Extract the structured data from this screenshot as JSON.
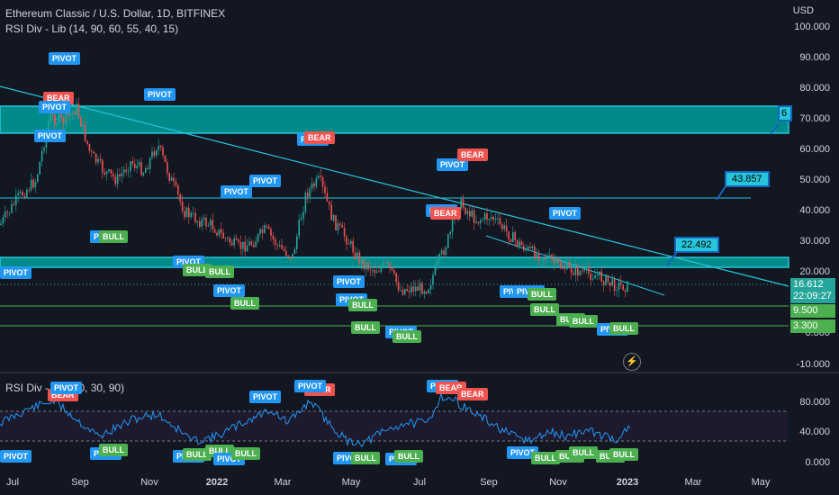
{
  "header": {
    "title": "Ethereum Classic / U.S. Dollar, 1D, BITFINEX",
    "indicator": "RSI Div - Lib (14, 90, 60, 55, 40, 15)",
    "rsi_indicator": "RSI Div - Lib (70, 30, 90)"
  },
  "price_axis": {
    "currency": "USD",
    "labels": [
      "100.000",
      "90.000",
      "80.000",
      "70.000",
      "60.000",
      "50.000",
      "40.000",
      "30.000",
      "20.000",
      "0.000",
      "-10.000"
    ]
  },
  "rsi_axis": {
    "labels": [
      "80.000",
      "40.000",
      "0.000"
    ]
  },
  "time_axis": {
    "labels": [
      "Jul",
      "Sep",
      "Nov",
      "2022",
      "Mar",
      "May",
      "Jul",
      "Sep",
      "Nov",
      "2023",
      "Mar",
      "May"
    ]
  },
  "price_tags": [
    {
      "value": "16.612",
      "sub": "22:09:27",
      "color": "#26a69a"
    },
    {
      "value": "9.500",
      "color": "#4caf50"
    },
    {
      "value": "3.300",
      "color": "#4caf50"
    }
  ],
  "callouts": [
    "43.857",
    "22.492",
    "6"
  ],
  "markers": {
    "pivot": "PIVOT",
    "bear": "BEAR",
    "bull": "BULL",
    "p": "P",
    "bu": "BU",
    "b": "B"
  },
  "colors": {
    "background": "#131722",
    "zone": "#008b8b",
    "line": "#26c6da",
    "candle_up": "#26a69a",
    "candle_down": "#ef5350",
    "rsi": "#2196f3",
    "pivot": "#2196f3",
    "bear": "#ef5350",
    "bull": "#4caf50"
  },
  "icons": {
    "flash": "lightning-icon"
  }
}
